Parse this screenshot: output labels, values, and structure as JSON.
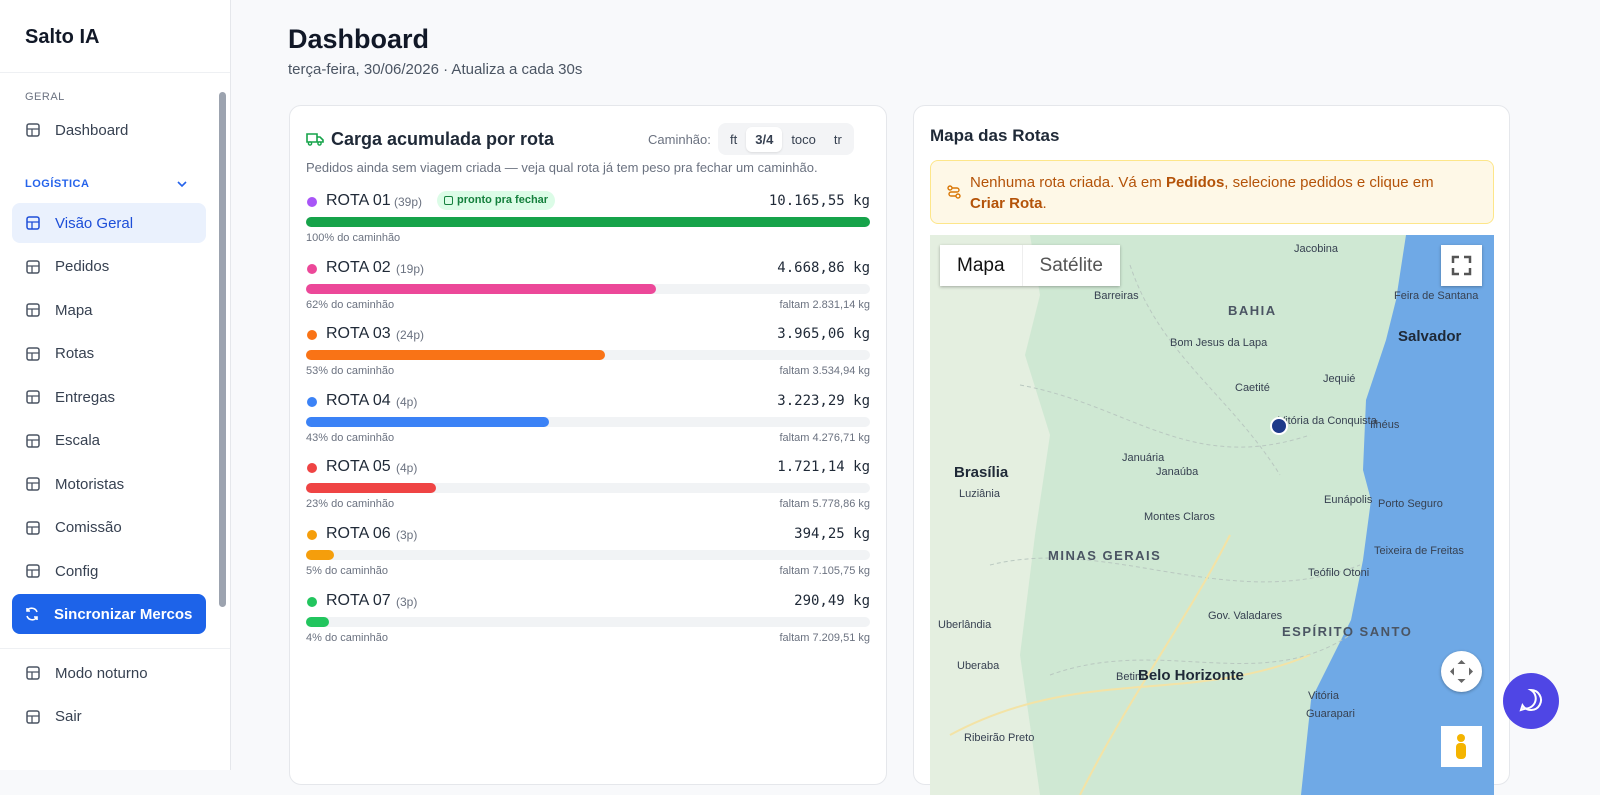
{
  "sidebar": {
    "brand": "Salto IA",
    "sections": [
      {
        "title": "GERAL",
        "items": [
          "Dashboard"
        ]
      },
      {
        "title": "LOGÍSTICA",
        "items": [
          "Visão Geral",
          "Pedidos",
          "Mapa",
          "Rotas",
          "Entregas",
          "Escala",
          "Motoristas",
          "Comissão",
          "Config"
        ]
      }
    ],
    "sync_button": "Sincronizar Mercos",
    "footer": [
      "Modo noturno",
      "Sair"
    ]
  },
  "header": {
    "title": "Dashboard",
    "subtitle": "terça-feira, 30/06/2026 · Atualiza a cada 30s"
  },
  "load_card": {
    "title": "Carga acumulada por rota",
    "truck_label": "Caminhão:",
    "truck_options": [
      "ft",
      "3/4",
      "toco",
      "tr"
    ],
    "description": "Pedidos ainda sem viagem criada — veja qual rota já tem peso pra fechar um caminhão.",
    "routes": [
      {
        "name": "ROTA 01",
        "orders": "(39p)",
        "badge": "pronto pra fechar",
        "weight": "10.165,55 kg",
        "percent": 100,
        "percent_label": "100% do caminhão",
        "dot": "#a855f7",
        "color": "#16a34a"
      },
      {
        "name": "ROTA 02",
        "orders": "(19p)",
        "weight": "4.668,86 kg",
        "percent": 62,
        "percent_label": "62% do caminhão",
        "remaining": "faltam 2.831,14 kg",
        "dot": "#ec4899",
        "color": "#ec4899"
      },
      {
        "name": "ROTA 03",
        "orders": "(24p)",
        "weight": "3.965,06 kg",
        "percent": 53,
        "percent_label": "53% do caminhão",
        "remaining": "faltam 3.534,94 kg",
        "dot": "#f97316",
        "color": "#f97316"
      },
      {
        "name": "ROTA 04",
        "orders": "(4p)",
        "weight": "3.223,29 kg",
        "percent": 43,
        "percent_label": "43% do caminhão",
        "remaining": "faltam 4.276,71 kg",
        "dot": "#3b82f6",
        "color": "#3b82f6"
      },
      {
        "name": "ROTA 05",
        "orders": "(4p)",
        "weight": "1.721,14 kg",
        "percent": 23,
        "percent_label": "23% do caminhão",
        "remaining": "faltam 5.778,86 kg",
        "dot": "#ef4444",
        "color": "#ef4444"
      },
      {
        "name": "ROTA 06",
        "orders": "(3p)",
        "weight": "394,25 kg",
        "percent": 5,
        "percent_label": "5% do caminhão",
        "remaining": "faltam 7.105,75 kg",
        "dot": "#f59e0b",
        "color": "#f59e0b"
      },
      {
        "name": "ROTA 07",
        "orders": "(3p)",
        "weight": "290,49 kg",
        "percent": 4,
        "percent_label": "4% do caminhão",
        "remaining": "faltam 7.209,51 kg",
        "dot": "#22c55e",
        "color": "#22c55e"
      }
    ]
  },
  "map_card": {
    "title": "Mapa das Rotas",
    "notice": [
      "Nenhuma rota criada. Vá em ",
      "Pedidos",
      ", selecione pedidos e clique em ",
      "Criar Rota",
      "."
    ],
    "map_types": [
      "Mapa",
      "Satélite"
    ],
    "labels": [
      "Jacobina",
      "BAHIA",
      "Barreiras",
      "Feira de Santana",
      "Salvador",
      "Bom Jesus da Lapa",
      "Caetité",
      "Jequié",
      "Vitória da Conquista",
      "Ilhéus",
      "Brasília",
      "Luziânia",
      "Januária",
      "Janaúba",
      "Montes Claros",
      "Eunápolis",
      "Porto Seguro",
      "MINAS GERAIS",
      "Teixeira de Freitas",
      "Teófilo Otoni",
      "Gov. Valadares",
      "ESPÍRITO SANTO",
      "Uberlândia",
      "Uberaba",
      "Betim",
      "Belo Horizonte",
      "Vitória",
      "Guarapari",
      "Ribeirão Preto"
    ]
  }
}
